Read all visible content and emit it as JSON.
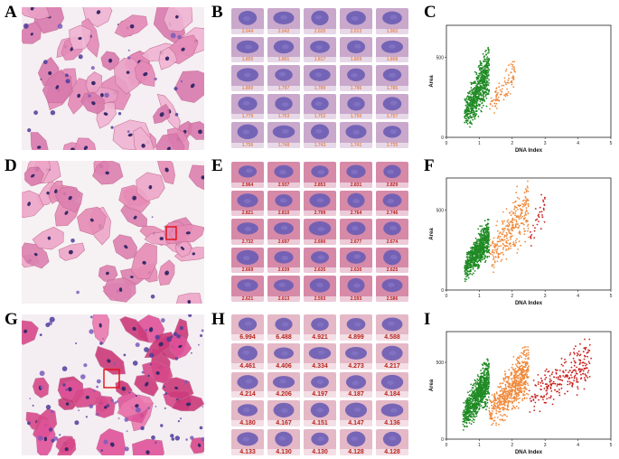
{
  "figure": {
    "panels": [
      {
        "letter": "A",
        "type": "micrograph",
        "variant": "normal"
      },
      {
        "letter": "B",
        "type": "gallery",
        "color": "#e08a5a",
        "values": [
          "2.044",
          "2.042",
          "2.020",
          "2.013",
          "1.902",
          "1.805",
          "1.801",
          "1.817",
          "1.809",
          "1.808",
          "1.800",
          "1.797",
          "1.789",
          "1.786",
          "1.785",
          "1.779",
          "1.753",
          "1.752",
          "1.750",
          "1.757",
          "1.756",
          "1.748",
          "1.743",
          "1.741",
          "1.735"
        ]
      },
      {
        "letter": "C",
        "type": "scatter"
      },
      {
        "letter": "D",
        "type": "micrograph",
        "variant": "boxed"
      },
      {
        "letter": "E",
        "type": "gallery",
        "color": "#b8241c",
        "values": [
          "2.964",
          "2.937",
          "2.853",
          "2.831",
          "2.829",
          "2.821",
          "2.810",
          "2.799",
          "2.764",
          "2.746",
          "2.732",
          "2.697",
          "2.690",
          "2.677",
          "2.674",
          "2.669",
          "2.639",
          "2.635",
          "2.630",
          "2.625",
          "2.621",
          "2.613",
          "2.593",
          "2.593",
          "2.586"
        ]
      },
      {
        "letter": "F",
        "type": "scatter"
      },
      {
        "letter": "G",
        "type": "micrograph",
        "variant": "abnormal"
      },
      {
        "letter": "H",
        "type": "gallery",
        "color": "#b8241c",
        "values": [
          "6.994",
          "6.488",
          "4.921",
          "4.899",
          "4.588",
          "4.461",
          "4.406",
          "4.334",
          "4.273",
          "4.217",
          "4.214",
          "4.206",
          "4.197",
          "4.187",
          "4.184",
          "4.180",
          "4.167",
          "4.151",
          "4.147",
          "4.136",
          "4.133",
          "4.130",
          "4.130",
          "4.128",
          "4.128"
        ]
      },
      {
        "letter": "I",
        "type": "scatter"
      }
    ]
  },
  "chart_data": [
    {
      "type": "scatter",
      "panel": "C",
      "xlabel": "DNA Index",
      "ylabel": "Area",
      "xlim": [
        0,
        5
      ],
      "ylim": [
        0,
        700
      ],
      "xticks": [
        "0",
        "1",
        "2",
        "3",
        "4",
        "5"
      ],
      "yticks": [
        "0",
        "500"
      ],
      "colors": {
        "normal": "#1f8a24",
        "elevated": "#f08a3c",
        "high": "#c8201c"
      },
      "clusters": [
        {
          "group": "normal",
          "x_range": [
            0.55,
            1.3
          ],
          "y_range": [
            30,
            560
          ],
          "count": 650
        },
        {
          "group": "elevated",
          "x_range": [
            1.3,
            2.1
          ],
          "y_range": [
            110,
            520
          ],
          "count": 90
        }
      ]
    },
    {
      "type": "scatter",
      "panel": "F",
      "xlabel": "DNA Index",
      "ylabel": "Area",
      "xlim": [
        0,
        5
      ],
      "ylim": [
        0,
        700
      ],
      "xticks": [
        "0",
        "1",
        "2",
        "3",
        "4",
        "5"
      ],
      "yticks": [
        "0",
        "500"
      ],
      "colors": {
        "normal": "#1f8a24",
        "elevated": "#f08a3c",
        "high": "#c8201c"
      },
      "clusters": [
        {
          "group": "normal",
          "x_range": [
            0.55,
            1.3
          ],
          "y_range": [
            50,
            440
          ],
          "count": 700
        },
        {
          "group": "elevated",
          "x_range": [
            1.3,
            2.5
          ],
          "y_range": [
            80,
            680
          ],
          "count": 300
        },
        {
          "group": "high",
          "x_range": [
            2.5,
            3.0
          ],
          "y_range": [
            250,
            620
          ],
          "count": 35
        }
      ]
    },
    {
      "type": "scatter",
      "panel": "I",
      "xlabel": "DNA Index",
      "ylabel": "Area",
      "xlim": [
        0,
        5
      ],
      "ylim": [
        0,
        700
      ],
      "xticks": [
        "0",
        "1",
        "2",
        "3",
        "4",
        "5"
      ],
      "yticks": [
        "0",
        "500"
      ],
      "colors": {
        "normal": "#1f8a24",
        "elevated": "#f08a3c",
        "high": "#c8201c"
      },
      "clusters": [
        {
          "group": "normal",
          "x_range": [
            0.5,
            1.3
          ],
          "y_range": [
            40,
            520
          ],
          "count": 800
        },
        {
          "group": "elevated",
          "x_range": [
            1.3,
            2.5
          ],
          "y_range": [
            60,
            600
          ],
          "count": 650
        },
        {
          "group": "high",
          "x_range": [
            2.5,
            4.4
          ],
          "y_range": [
            150,
            650
          ],
          "count": 260
        }
      ]
    }
  ]
}
